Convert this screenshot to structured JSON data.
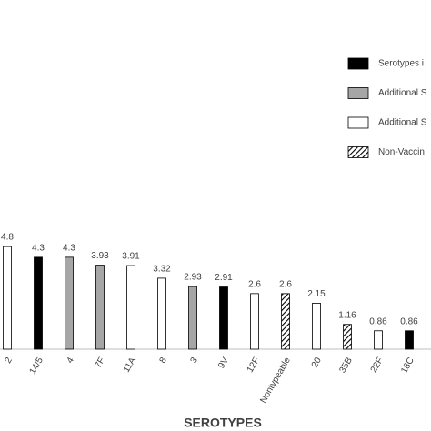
{
  "chart_data": {
    "type": "bar",
    "x_label": "SEROTYPES",
    "categories": [
      "2",
      "14/5",
      "4",
      "7F",
      "11A",
      "8",
      "3",
      "9V",
      "12F",
      "Nontypeable",
      "20",
      "35B",
      "22F",
      "18C"
    ],
    "series": [
      {
        "name": "Serotypes i",
        "color": "#000000",
        "values": [
          null,
          4.3,
          null,
          null,
          null,
          null,
          null,
          2.91,
          null,
          null,
          null,
          null,
          null,
          0.86
        ]
      },
      {
        "name": "Additional S",
        "color": "#a6a6a6",
        "values": [
          null,
          null,
          4.3,
          3.93,
          null,
          null,
          2.93,
          null,
          null,
          null,
          null,
          null,
          null,
          null
        ]
      },
      {
        "name": "Additional S",
        "color": "#ffffff",
        "values": [
          4.8,
          null,
          null,
          null,
          3.91,
          3.32,
          null,
          null,
          2.6,
          null,
          2.15,
          null,
          0.86,
          null
        ]
      },
      {
        "name": "Non-Vaccin",
        "color": "#000000",
        "pattern": "hatch",
        "values": [
          null,
          null,
          null,
          null,
          null,
          null,
          null,
          null,
          null,
          2.6,
          null,
          1.16,
          null,
          null
        ]
      }
    ],
    "ylim": [
      0,
      5
    ]
  }
}
